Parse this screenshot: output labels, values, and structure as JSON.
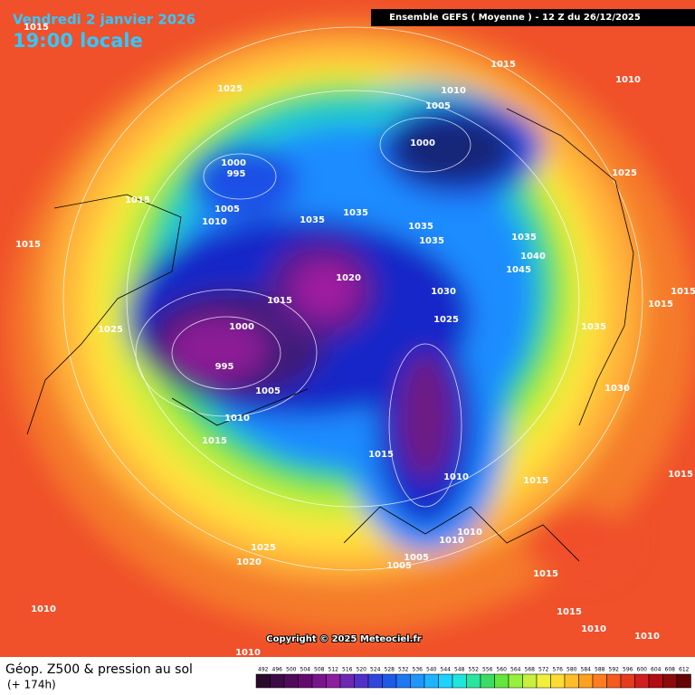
{
  "header": {
    "date": "Vendredi 2 janvier 2026",
    "time": "19:00 locale",
    "run": "Ensemble GEFS  ( Moyenne )  -  12 Z du 26/12/2025"
  },
  "copyright": "Copyright © 2025 Meteociel.fr",
  "footer": {
    "title": "Géop. Z500 & pression au sol",
    "lead": "(+ 174h)"
  },
  "scale": [
    492,
    496,
    500,
    504,
    508,
    512,
    516,
    520,
    524,
    528,
    532,
    536,
    540,
    544,
    548,
    552,
    556,
    560,
    564,
    568,
    572,
    576,
    580,
    584,
    588,
    592,
    596,
    600,
    604,
    608,
    612
  ],
  "isobars": [
    1015,
    1025,
    1015,
    1010,
    1010,
    1005,
    1000,
    1000,
    995,
    1025,
    1015,
    1005,
    1010,
    1035,
    1035,
    1035,
    1035,
    1035,
    1040,
    1045,
    1015,
    1020,
    1015,
    1030,
    1025,
    1015,
    1015,
    1025,
    1000,
    1035,
    995,
    1005,
    1030,
    1010,
    1015,
    1015,
    1010,
    1015,
    1015,
    1010,
    1010,
    1025,
    1020,
    1005,
    1005,
    1015,
    1010,
    1015,
    1010,
    1010,
    1010
  ]
}
